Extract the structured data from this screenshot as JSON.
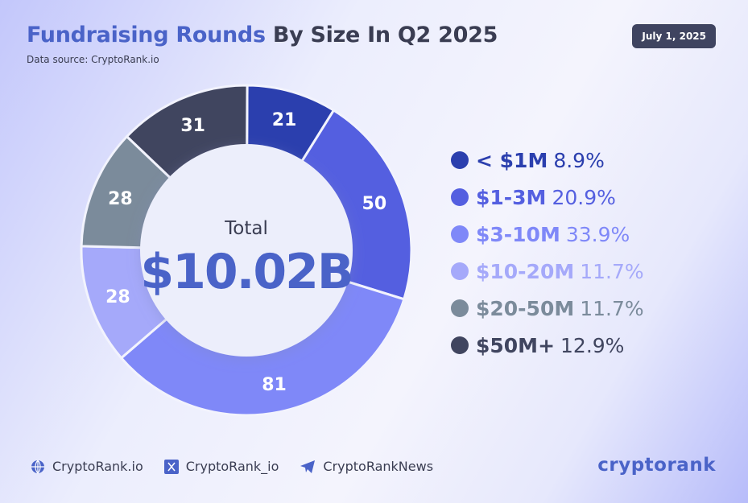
{
  "header": {
    "title_highlight": "Fundraising Rounds",
    "title_rest": "By Size In Q2 2025",
    "source": "Data source: CryptoRank.io",
    "date": "July 1, 2025"
  },
  "chart_data": {
    "type": "pie",
    "center_label": "Total",
    "center_value": "$10.02B",
    "categories": [
      "< $1M",
      "$1-3M",
      "$3-10M",
      "$10-20M",
      "$20-50M",
      "$50M+"
    ],
    "values": [
      21,
      50,
      81,
      28,
      28,
      31
    ],
    "percents": [
      "8.9%",
      "20.9%",
      "33.9%",
      "11.7%",
      "11.7%",
      "12.9%"
    ],
    "colors": [
      "#2b3fae",
      "#545fe0",
      "#7f88f8",
      "#a5a9fa",
      "#7b8b9b",
      "#40455f"
    ],
    "legend_text_colors": [
      "#2b3fae",
      "#545fe0",
      "#7f88f8",
      "#a5a9fa",
      "#7b8b9b",
      "#40455f"
    ],
    "legend_placement": "right"
  },
  "footer": {
    "items": [
      {
        "icon": "globe-icon",
        "label": "CryptoRank.io"
      },
      {
        "icon": "x-icon",
        "label": "CryptoRank_io"
      },
      {
        "icon": "telegram-icon",
        "label": "CryptoRankNews"
      }
    ],
    "logo": "cryptorank"
  }
}
